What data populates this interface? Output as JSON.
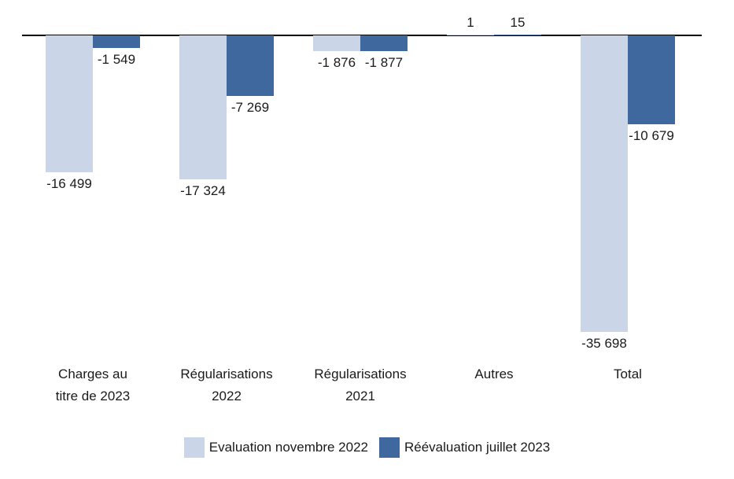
{
  "chart_data": {
    "type": "bar",
    "title": "",
    "xlabel": "",
    "ylabel": "",
    "grid": false,
    "legend_position": "bottom",
    "ylim": [
      -40000,
      2000
    ],
    "categories": [
      "Charges au\ntitre de 2023",
      "Régularisations\n2022",
      "Régularisations\n2021",
      "Autres",
      "Total"
    ],
    "series": [
      {
        "name": "Evaluation novembre 2022",
        "color": "#cbd5e8",
        "values": [
          -16499,
          -17324,
          -1876,
          1,
          -35698
        ],
        "labels": [
          "-16 499",
          "-17 324",
          "-1 876",
          "1",
          "-35 698"
        ]
      },
      {
        "name": "Réévaluation juillet 2023",
        "color": "#3f689e",
        "values": [
          -1549,
          -7269,
          -1877,
          15,
          -10679
        ],
        "labels": [
          "-1 549",
          "-7 269",
          "-1 877",
          "15",
          "-10 679"
        ]
      }
    ]
  }
}
